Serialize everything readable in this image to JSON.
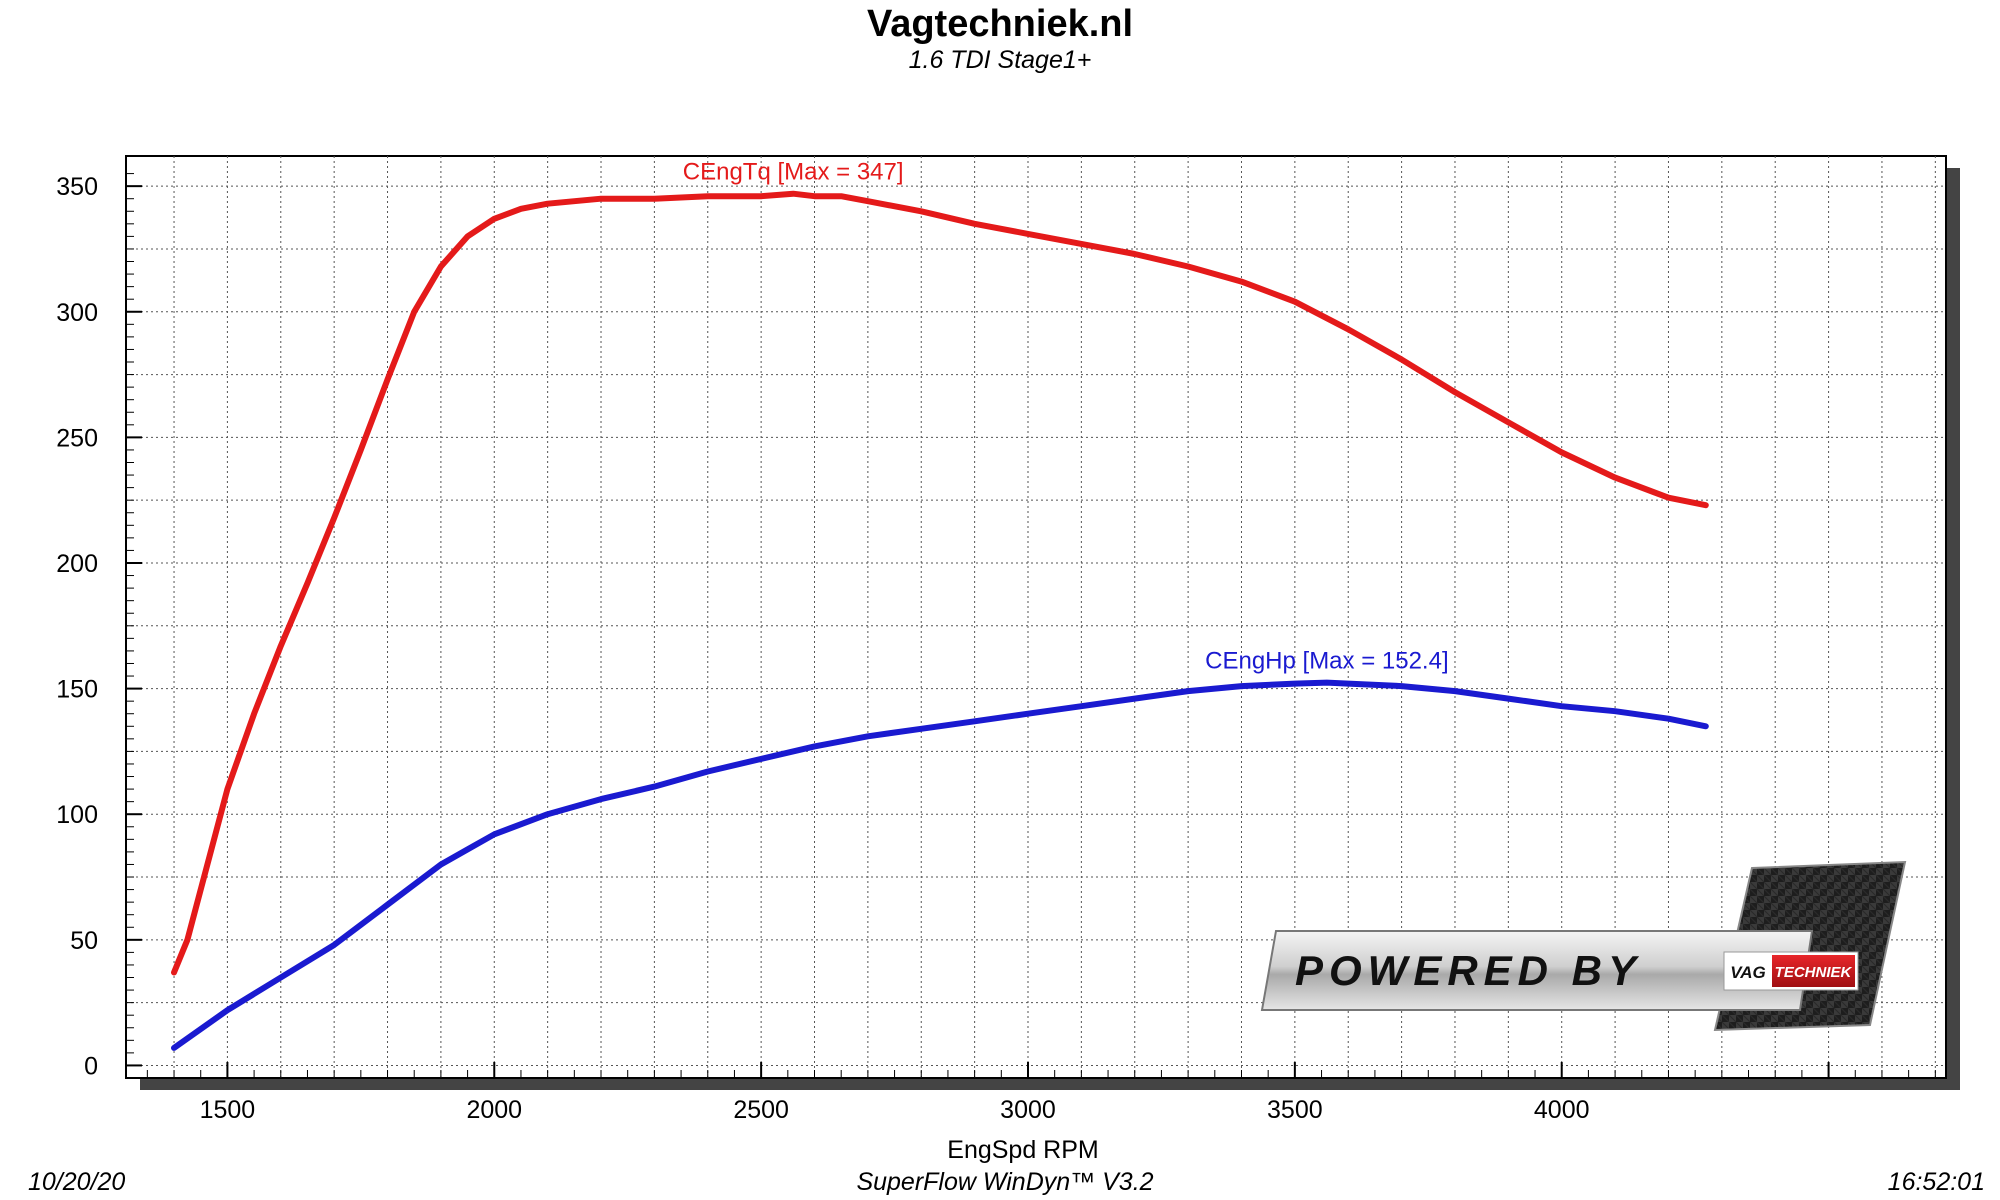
{
  "header": {
    "title": "Vagtechniek.nl",
    "subtitle": "1.6 TDI Stage1+"
  },
  "footer": {
    "date": "10/20/20",
    "software": "SuperFlow WinDyn™  V3.2",
    "time": "16:52:01"
  },
  "logo": {
    "powered_by": "POWERED BY",
    "brand_left": "VAG",
    "brand_right": "TECHNIEK"
  },
  "chart_data": {
    "type": "line",
    "title": "Vagtechniek.nl",
    "subtitle": "1.6 TDI Stage1+",
    "xlabel": "EngSpd RPM",
    "ylabel": "",
    "xlim": [
      1310,
      4720
    ],
    "ylim": [
      -5,
      362
    ],
    "x_ticks": [
      1500,
      2000,
      2500,
      3000,
      3500,
      4000
    ],
    "y_ticks": [
      0,
      50,
      100,
      150,
      200,
      250,
      300,
      350
    ],
    "grid": true,
    "series": [
      {
        "name": "CEngTq",
        "label": "CEngTq [Max = 347]",
        "color": "#e41a1a",
        "x": [
          1400,
          1425,
          1450,
          1500,
          1550,
          1600,
          1650,
          1700,
          1750,
          1800,
          1850,
          1900,
          1950,
          2000,
          2050,
          2100,
          2150,
          2200,
          2300,
          2400,
          2500,
          2560,
          2600,
          2650,
          2700,
          2800,
          2900,
          3000,
          3100,
          3200,
          3300,
          3400,
          3500,
          3600,
          3700,
          3800,
          3900,
          4000,
          4100,
          4200,
          4270
        ],
        "y": [
          37,
          50,
          70,
          110,
          140,
          167,
          192,
          218,
          245,
          273,
          300,
          318,
          330,
          337,
          341,
          343,
          344,
          345,
          345,
          346,
          346,
          347,
          346,
          346,
          344,
          340,
          335,
          331,
          327,
          323,
          318,
          312,
          304,
          293,
          281,
          268,
          256,
          244,
          234,
          226,
          223
        ]
      },
      {
        "name": "CEngHp",
        "label": "CEngHp [Max = 152.4]",
        "color": "#1a1ad0",
        "x": [
          1400,
          1500,
          1600,
          1700,
          1800,
          1900,
          1950,
          2000,
          2100,
          2200,
          2300,
          2400,
          2500,
          2600,
          2700,
          2800,
          2900,
          3000,
          3100,
          3200,
          3300,
          3400,
          3500,
          3560,
          3600,
          3700,
          3800,
          3900,
          4000,
          4100,
          4200,
          4270
        ],
        "y": [
          7,
          22,
          35,
          48,
          64,
          80,
          86,
          92,
          100,
          106,
          111,
          117,
          122,
          127,
          131,
          134,
          137,
          140,
          143,
          146,
          149,
          151,
          152,
          152.4,
          152,
          151,
          149,
          146,
          143,
          141,
          138,
          135
        ]
      }
    ]
  }
}
